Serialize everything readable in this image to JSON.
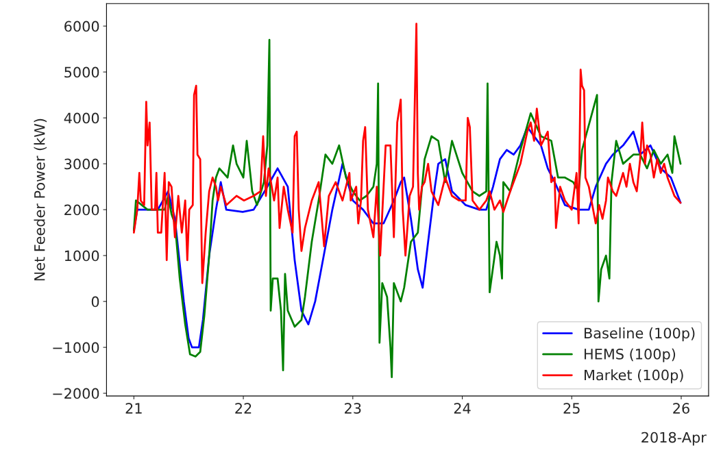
{
  "chart_data": {
    "type": "line",
    "ylabel": "Net Feeder Power (kW)",
    "annotations": [
      "2018-Apr"
    ],
    "xlim": [
      20.75,
      26.25
    ],
    "xticks": [
      21,
      22,
      23,
      24,
      25,
      26
    ],
    "ylim": [
      -2060,
      6490
    ],
    "yticks": [
      {
        "value": -2000,
        "label": "−2000"
      },
      {
        "value": -1000,
        "label": "−1000"
      },
      0,
      1000,
      2000,
      3000,
      4000,
      5000,
      6000
    ],
    "grid": false,
    "legend": "bottom right",
    "line_style": "solid",
    "marker": "none",
    "series": [
      {
        "name": "Baseline (100p)",
        "color": "#0000ff",
        "x": [
          21.0,
          21.031,
          21.219,
          21.313,
          21.375,
          21.456,
          21.5,
          21.531,
          21.594,
          21.631,
          21.688,
          21.75,
          21.794,
          21.844,
          21.994,
          22.094,
          22.219,
          22.313,
          22.406,
          22.469,
          22.531,
          22.594,
          22.656,
          22.719,
          22.813,
          22.906,
          23.0,
          23.094,
          23.188,
          23.281,
          23.375,
          23.438,
          23.469,
          23.531,
          23.594,
          23.638,
          23.688,
          23.75,
          23.781,
          23.844,
          23.906,
          24.031,
          24.156,
          24.219,
          24.281,
          24.344,
          24.406,
          24.469,
          24.531,
          24.594,
          24.656,
          24.719,
          24.781,
          24.844,
          24.938,
          25.063,
          25.156,
          25.219,
          25.313,
          25.375,
          25.469,
          25.563,
          25.625,
          25.719,
          25.813,
          25.906,
          25.994
        ],
        "values": [
          1550,
          2000,
          2000,
          2400,
          1800,
          0,
          -800,
          -1000,
          -1000,
          -400,
          1000,
          2000,
          2600,
          2000,
          1950,
          2000,
          2500,
          2900,
          2500,
          900,
          -200,
          -500,
          0,
          800,
          2000,
          3000,
          2200,
          2000,
          1700,
          1700,
          2200,
          2600,
          2700,
          1800,
          700,
          300,
          1300,
          2500,
          3000,
          3100,
          2400,
          2100,
          2000,
          2000,
          2500,
          3100,
          3300,
          3200,
          3400,
          3800,
          3600,
          3400,
          2900,
          2600,
          2100,
          2000,
          2000,
          2500,
          3000,
          3200,
          3400,
          3700,
          3200,
          3400,
          2900,
          2700,
          2150
        ]
      },
      {
        "name": "HEMS (100p)",
        "color": "#008000",
        "x": [
          21.0,
          21.019,
          21.125,
          21.281,
          21.313,
          21.344,
          21.375,
          21.419,
          21.469,
          21.513,
          21.563,
          21.606,
          21.644,
          21.688,
          21.719,
          21.75,
          21.781,
          21.856,
          21.906,
          21.938,
          22.0,
          22.031,
          22.081,
          22.125,
          22.188,
          22.219,
          22.238,
          22.25,
          22.269,
          22.313,
          22.344,
          22.363,
          22.381,
          22.406,
          22.469,
          22.531,
          22.563,
          22.625,
          22.688,
          22.75,
          22.813,
          22.875,
          22.938,
          23.0,
          23.063,
          23.125,
          23.188,
          23.219,
          23.231,
          23.244,
          23.269,
          23.313,
          23.344,
          23.356,
          23.375,
          23.438,
          23.469,
          23.531,
          23.594,
          23.656,
          23.719,
          23.781,
          23.844,
          23.906,
          24.0,
          24.094,
          24.156,
          24.219,
          24.231,
          24.25,
          24.313,
          24.344,
          24.363,
          24.375,
          24.438,
          24.531,
          24.625,
          24.719,
          24.813,
          24.875,
          24.938,
          25.013,
          25.063,
          25.094,
          25.231,
          25.244,
          25.269,
          25.313,
          25.344,
          25.363,
          25.406,
          25.469,
          25.563,
          25.625,
          25.688,
          25.75,
          25.813,
          25.875,
          25.919,
          25.938,
          25.994
        ],
        "values": [
          1550,
          2200,
          2000,
          2000,
          2300,
          1900,
          1700,
          500,
          -500,
          -1150,
          -1200,
          -1100,
          -300,
          1000,
          2200,
          2700,
          2900,
          2700,
          3400,
          3000,
          2700,
          3500,
          2400,
          2100,
          2600,
          3400,
          5700,
          -200,
          500,
          500,
          -200,
          -1500,
          600,
          -200,
          -550,
          -400,
          100,
          1300,
          2200,
          3200,
          3000,
          3400,
          2700,
          2400,
          2200,
          2300,
          2500,
          3000,
          4750,
          -900,
          400,
          100,
          -1000,
          -1650,
          400,
          0,
          300,
          1300,
          1500,
          3100,
          3600,
          3500,
          2600,
          3500,
          2800,
          2400,
          2300,
          2400,
          4750,
          200,
          1300,
          1000,
          500,
          2600,
          2400,
          3300,
          4100,
          3600,
          3500,
          2700,
          2700,
          2600,
          2400,
          3300,
          4500,
          0,
          700,
          1000,
          500,
          2600,
          3500,
          3000,
          3200,
          3200,
          2900,
          3300,
          3000,
          3200,
          2800,
          3600,
          3000
        ]
      },
      {
        "name": "Market (100p)",
        "color": "#ff0000",
        "x": [
          21.0,
          21.031,
          21.05,
          21.063,
          21.094,
          21.113,
          21.125,
          21.144,
          21.163,
          21.194,
          21.206,
          21.219,
          21.25,
          21.281,
          21.3,
          21.319,
          21.344,
          21.375,
          21.406,
          21.438,
          21.469,
          21.488,
          21.506,
          21.538,
          21.55,
          21.569,
          21.581,
          21.606,
          21.625,
          21.656,
          21.688,
          21.719,
          21.75,
          21.769,
          21.794,
          21.844,
          21.938,
          22.006,
          22.094,
          22.156,
          22.181,
          22.206,
          22.231,
          22.281,
          22.313,
          22.331,
          22.369,
          22.406,
          22.45,
          22.469,
          22.488,
          22.506,
          22.531,
          22.563,
          22.625,
          22.688,
          22.738,
          22.781,
          22.844,
          22.906,
          22.969,
          22.981,
          23.031,
          23.05,
          23.075,
          23.094,
          23.113,
          23.138,
          23.188,
          23.219,
          23.25,
          23.3,
          23.344,
          23.375,
          23.406,
          23.438,
          23.456,
          23.481,
          23.519,
          23.55,
          23.581,
          23.594,
          23.606,
          23.631,
          23.656,
          23.688,
          23.719,
          23.781,
          23.844,
          23.906,
          23.969,
          24.031,
          24.05,
          24.069,
          24.094,
          24.156,
          24.219,
          24.25,
          24.294,
          24.344,
          24.375,
          24.438,
          24.531,
          24.594,
          24.625,
          24.656,
          24.681,
          24.719,
          24.781,
          24.813,
          24.844,
          24.856,
          24.894,
          24.938,
          25.0,
          25.044,
          25.063,
          25.081,
          25.094,
          25.113,
          25.125,
          25.156,
          25.188,
          25.219,
          25.25,
          25.281,
          25.313,
          25.331,
          25.375,
          25.406,
          25.469,
          25.5,
          25.531,
          25.563,
          25.594,
          25.625,
          25.644,
          25.669,
          25.688,
          25.719,
          25.75,
          25.781,
          25.813,
          25.844,
          25.875,
          25.938,
          25.994
        ],
        "values": [
          1500,
          2000,
          2800,
          2200,
          2100,
          4350,
          3400,
          3900,
          2000,
          2000,
          2800,
          1500,
          1500,
          2800,
          900,
          2600,
          2500,
          1400,
          2300,
          1500,
          2200,
          900,
          2000,
          2100,
          4500,
          4700,
          3200,
          3100,
          400,
          1500,
          2400,
          2700,
          2500,
          2200,
          2500,
          2100,
          2300,
          2200,
          2300,
          2400,
          3600,
          2300,
          2900,
          2200,
          2700,
          1600,
          2500,
          2000,
          1500,
          3600,
          3700,
          2000,
          1100,
          1600,
          2200,
          2600,
          1200,
          2300,
          2600,
          2200,
          2800,
          2200,
          2500,
          1700,
          2200,
          3500,
          3800,
          2000,
          1400,
          2500,
          1000,
          3400,
          3400,
          1400,
          3900,
          4400,
          2000,
          1000,
          2300,
          2500,
          6050,
          2800,
          2000,
          2500,
          2600,
          3000,
          2400,
          2100,
          2700,
          2300,
          2200,
          2200,
          4000,
          3800,
          2200,
          2000,
          2200,
          2400,
          2000,
          2200,
          1950,
          2400,
          3000,
          3700,
          3900,
          3500,
          4200,
          3400,
          3700,
          2600,
          2700,
          1600,
          2500,
          2200,
          2000,
          2800,
          1700,
          5050,
          4700,
          4600,
          2700,
          2500,
          2100,
          1700,
          2100,
          1800,
          2200,
          2700,
          2400,
          2300,
          2800,
          2500,
          3000,
          2600,
          2400,
          3100,
          3900,
          3000,
          3400,
          3200,
          2700,
          3100,
          2800,
          3000,
          2700,
          2300,
          2150
        ]
      }
    ]
  }
}
